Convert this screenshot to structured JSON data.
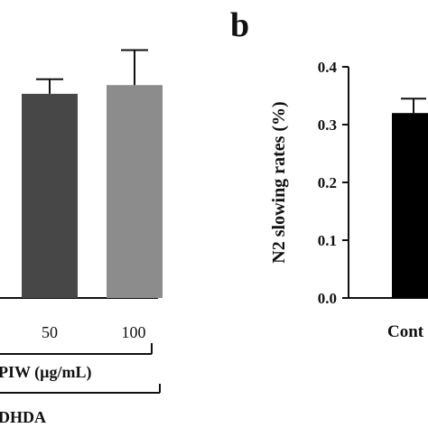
{
  "panel_label": "b",
  "chart_data": [
    {
      "type": "bar",
      "panel": "a",
      "categories": [
        "50",
        "100"
      ],
      "values": [
        0.7,
        0.73
      ],
      "errors": [
        0.05,
        0.12
      ],
      "colors": [
        "#474747",
        "#8c8c8c"
      ],
      "xlabel": "",
      "ylabel": "",
      "ylim": [
        0,
        1.0
      ],
      "group_labels": [
        "PIW  (µg/mL)",
        "DHDA"
      ]
    },
    {
      "type": "bar",
      "panel": "b",
      "categories": [
        "Cont"
      ],
      "values": [
        0.32
      ],
      "errors": [
        0.025
      ],
      "colors": [
        "#000000"
      ],
      "ylabel": "N2 slowing rates (%)",
      "ylim": [
        0,
        0.4
      ],
      "yticks": [
        "0.0",
        "0.1",
        "0.2",
        "0.3",
        "0.4"
      ],
      "grid": false
    }
  ]
}
